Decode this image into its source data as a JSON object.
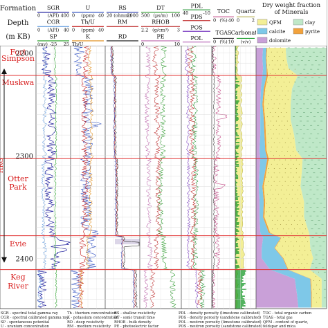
{
  "header": {
    "row_labels": [
      "Formation",
      "Depth",
      "(m KB)"
    ],
    "track1": [
      "SGR",
      "CGR",
      "SP"
    ],
    "track1_ranges": [
      [
        "0",
        "(API)",
        "400"
      ],
      [
        "0",
        "(API)",
        "40"
      ],
      [
        "(mv)",
        "-25",
        "25"
      ]
    ],
    "track2": [
      "U",
      "Th/U",
      "K"
    ],
    "track2_ranges": [
      [
        "0",
        "(ppm)",
        "40"
      ],
      [
        "0",
        "(ppm)",
        "40"
      ],
      [
        "Th/U",
        "",
        ""
      ]
    ],
    "track3": [
      "RS",
      "RM",
      "RD"
    ],
    "track3_ranges": [
      [
        "20",
        "(ohmm)",
        "2000"
      ]
    ],
    "track4": [
      "DT",
      "RHOB",
      "PE"
    ],
    "track4_ranges": [
      [
        "500",
        "(µs/m)",
        "100"
      ],
      [
        "2.2",
        "(g/cm³)",
        "3"
      ],
      [
        "0",
        "",
        "10"
      ]
    ],
    "track5": [
      "PDL",
      "PDS",
      "POS",
      "POL"
    ],
    "track5_ranges": [
      [
        "40",
        "",
        "-10"
      ]
    ],
    "track6": [
      "TOC",
      "TGAS"
    ],
    "track6_ranges": [
      [
        "0",
        "(%)",
        "40"
      ],
      [
        "0",
        "(%)",
        "10"
      ]
    ],
    "track7": [
      "Quartz",
      "Carbonate"
    ],
    "track7_ranges": [
      [
        "0",
        "",
        "2"
      ],
      [
        "",
        "(v/v)",
        ""
      ]
    ],
    "mineral_title": "Dry weight fraction of Minerals",
    "legend": [
      {
        "label": "QFM",
        "color": "#f3ef96"
      },
      {
        "label": "clay",
        "color": "#bfe8c8"
      },
      {
        "label": "calcite",
        "color": "#7ec8e8"
      },
      {
        "label": "pyrite",
        "color": "#f2a23c"
      },
      {
        "label": "dolomite",
        "color": "#c9a0d8"
      }
    ]
  },
  "formations": [
    {
      "name": "Fort Simpson",
      "top": 2200
    },
    {
      "name": "Muskwa",
      "top": 2222
    },
    {
      "name": "Otter Park",
      "top": 2303
    },
    {
      "name": "Evie",
      "top": 2378
    },
    {
      "name": "Keg River",
      "top": 2411
    }
  ],
  "depth_ticks": [
    "2200",
    "2300",
    "2400"
  ],
  "hrg_label": "HRG",
  "chart_data": {
    "type": "line",
    "title": "",
    "ylabel": "Depth (m KB)",
    "ylim": [
      2193,
      2449
    ],
    "depth_ticks": [
      2200,
      2300,
      2400
    ],
    "formation_tops": [
      2222,
      2303,
      2378,
      2411
    ],
    "hrg_interval": [
      2222,
      2411
    ],
    "composition": {
      "depth": [
        2195,
        2205,
        2215,
        2222,
        2235,
        2250,
        2265,
        2280,
        2295,
        2303,
        2315,
        2330,
        2345,
        2360,
        2375,
        2380,
        2390,
        2400,
        2411,
        2420,
        2435,
        2448
      ],
      "dolomite": [
        0.1,
        0.09,
        0.1,
        0.09,
        0.07,
        0.06,
        0.06,
        0.06,
        0.05,
        0.06,
        0.05,
        0.04,
        0.05,
        0.05,
        0.06,
        0.1,
        0.08,
        0.08,
        0.2,
        0.55,
        0.58,
        0.6
      ],
      "calcite": [
        0.05,
        0.05,
        0.05,
        0.06,
        0.04,
        0.03,
        0.05,
        0.06,
        0.08,
        0.1,
        0.08,
        0.05,
        0.06,
        0.05,
        0.12,
        0.25,
        0.18,
        0.3,
        0.25,
        0.22,
        0.2,
        0.18
      ],
      "pyrite": [
        0.01,
        0.01,
        0.01,
        0.02,
        0.02,
        0.02,
        0.02,
        0.02,
        0.02,
        0.02,
        0.02,
        0.02,
        0.02,
        0.02,
        0.02,
        0.01,
        0.01,
        0.01,
        0.01,
        0.01,
        0.01,
        0.01
      ],
      "qfm": [
        0.26,
        0.28,
        0.3,
        0.42,
        0.38,
        0.38,
        0.36,
        0.4,
        0.42,
        0.48,
        0.5,
        0.52,
        0.55,
        0.56,
        0.55,
        0.4,
        0.5,
        0.42,
        0.3,
        0.15,
        0.14,
        0.14
      ],
      "clay": [
        0.58,
        0.57,
        0.54,
        0.41,
        0.49,
        0.51,
        0.51,
        0.46,
        0.43,
        0.34,
        0.35,
        0.37,
        0.32,
        0.32,
        0.25,
        0.24,
        0.23,
        0.19,
        0.24,
        0.07,
        0.07,
        0.07
      ]
    }
  },
  "footnotes": [
    [
      "SGR - spectral total gamma ray",
      "Th - thorium concentration",
      "RS - shallow resistivity",
      "PDL - density porosity (limestone calibrated)",
      "TOC - total organic carbon"
    ],
    [
      "CGR - spectral calibrated gamma ray",
      "K - potassium concentration",
      "DT - sonic transit time",
      "PDS - density porosity (sandstone calibrated)",
      "TGAS - total gas"
    ],
    [
      "SP - spontaneous potential",
      "RD - deep resistivity",
      "RHOB - bulk density",
      "POL - neutron porosity (limestone calibrated)",
      "QFM - content of quartz,"
    ],
    [
      "U - uranium concentration",
      "RM - medium resistivity",
      "PE - photoelectric factor",
      "POS - neutron porosity (sandstone calibrated)",
      "feldspar and mica"
    ]
  ]
}
